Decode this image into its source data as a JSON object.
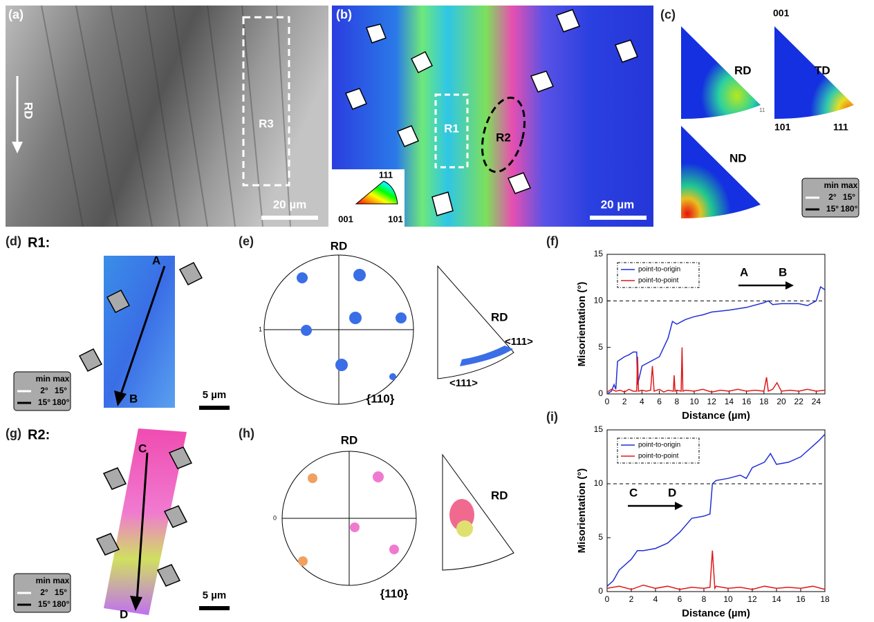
{
  "figure": {
    "a": {
      "label": "(a)",
      "direction": "RD",
      "region": "R3",
      "scale_bar": "20 µm"
    },
    "b": {
      "label": "(b)",
      "regions": [
        "R1",
        "R2"
      ],
      "scale_bar": "20 µm",
      "key": {
        "top": "111",
        "left": "001",
        "right": "101"
      }
    },
    "c": {
      "label": "(c)",
      "maps": [
        "RD",
        "TD",
        "ND"
      ],
      "corners": {
        "top": "001",
        "left": "101",
        "right": "111"
      },
      "mark": "11",
      "legend": {
        "header": "min max",
        "rows": [
          [
            "2°",
            "15°"
          ],
          [
            "15°",
            "180°"
          ]
        ]
      }
    },
    "d": {
      "label": "(d)",
      "title": "R1:",
      "start": "A",
      "end": "B",
      "scale_bar": "5 µm",
      "legend": {
        "header": "min max",
        "rows": [
          [
            "2°",
            "15°"
          ],
          [
            "15°",
            "180°"
          ]
        ]
      }
    },
    "e": {
      "label": "(e)",
      "pole_figure": "{110}",
      "axis": "RD",
      "ipf_axis": "RD",
      "directions": [
        "<111>",
        "<111>"
      ],
      "tick": "1"
    },
    "g": {
      "label": "(g)",
      "title": "R2:",
      "start": "C",
      "end": "D",
      "scale_bar": "5 µm",
      "legend": {
        "header": "min max",
        "rows": [
          [
            "2°",
            "15°"
          ],
          [
            "15°",
            "180°"
          ]
        ]
      }
    },
    "h": {
      "label": "(h)",
      "pole_figure": "{110}",
      "axis": "RD",
      "ipf_axis": "RD",
      "tick": "0"
    }
  },
  "chart_data": [
    {
      "type": "line",
      "panel_label": "(f)",
      "xlabel": "Distance (µm)",
      "ylabel": "Misorientation (°)",
      "xlim": [
        0,
        25
      ],
      "xticks": [
        0,
        2,
        4,
        6,
        8,
        10,
        12,
        14,
        16,
        18,
        20,
        22,
        24
      ],
      "ylim": [
        0,
        15
      ],
      "yticks": [
        0,
        5,
        10,
        15
      ],
      "hline": 10,
      "annotations": [
        "A",
        "B"
      ],
      "legend": "upper left",
      "series": [
        {
          "name": "point-to-origin",
          "color": "#1f2fd6",
          "x": [
            0,
            0.5,
            0.8,
            1,
            1.2,
            2,
            2.5,
            3,
            3.4,
            3.5,
            4,
            5,
            6,
            6.5,
            7,
            7.5,
            8,
            9,
            10,
            11,
            12,
            14,
            16,
            18,
            18.5,
            19,
            20,
            22,
            23,
            24,
            24.5,
            25
          ],
          "values": [
            0,
            0.3,
            1,
            0.5,
            3.5,
            4,
            4.2,
            4.5,
            4.5,
            1,
            3,
            3.5,
            4,
            5,
            6,
            7.8,
            7.5,
            8,
            8.3,
            8.5,
            8.8,
            9,
            9.3,
            9.8,
            10,
            9.6,
            9.7,
            9.7,
            9.5,
            10,
            11.5,
            11.2
          ]
        },
        {
          "name": "point-to-point",
          "color": "#e01818",
          "x": [
            0,
            0.5,
            1,
            1.5,
            2,
            2.5,
            3,
            3.4,
            3.5,
            3.6,
            4,
            4.5,
            5,
            5.2,
            5.4,
            6,
            6.5,
            7,
            7.6,
            7.7,
            7.8,
            8,
            8.5,
            8.6,
            8.7,
            9,
            10,
            11,
            12,
            13,
            14,
            15,
            16,
            17,
            18,
            18.3,
            18.5,
            19,
            19.5,
            20,
            21,
            22,
            23,
            24,
            25
          ],
          "values": [
            0.2,
            0.5,
            0.3,
            0.4,
            0.2,
            0.5,
            0.3,
            0.3,
            4,
            0.3,
            0.4,
            0.3,
            0.4,
            3,
            0.3,
            0.5,
            0.2,
            0.4,
            0.3,
            2,
            0.3,
            0.4,
            0.3,
            5,
            0.3,
            0.4,
            0.3,
            0.5,
            0.2,
            0.4,
            0.3,
            0.5,
            0.3,
            0.4,
            0.3,
            1.8,
            0.3,
            0.5,
            1.2,
            0.3,
            0.4,
            0.3,
            0.5,
            0.3,
            0.4
          ]
        }
      ]
    },
    {
      "type": "line",
      "panel_label": "(i)",
      "xlabel": "Distance (µm)",
      "ylabel": "Misorientation (°)",
      "xlim": [
        0,
        18
      ],
      "xticks": [
        0,
        2,
        4,
        6,
        8,
        10,
        12,
        14,
        16,
        18
      ],
      "ylim": [
        0,
        15
      ],
      "yticks": [
        0,
        5,
        10,
        15
      ],
      "hline": 10,
      "annotations": [
        "C",
        "D"
      ],
      "legend": "upper left",
      "series": [
        {
          "name": "point-to-origin",
          "color": "#1f2fd6",
          "x": [
            0,
            0.5,
            1,
            2,
            2.5,
            3,
            4,
            5,
            6,
            7,
            8,
            8.5,
            8.7,
            9,
            10,
            11,
            11.5,
            12,
            13,
            13.5,
            14,
            15,
            16,
            17,
            17.5,
            18
          ],
          "values": [
            0.5,
            1,
            2,
            3,
            3.8,
            3.8,
            4,
            4.5,
            5.5,
            6.8,
            7,
            7.2,
            10,
            10.3,
            10.5,
            10.8,
            10.5,
            11.5,
            12,
            12.8,
            11.8,
            12,
            12.5,
            13.5,
            14,
            14.6
          ]
        },
        {
          "name": "point-to-point",
          "color": "#e01818",
          "x": [
            0,
            1,
            2,
            3,
            4,
            5,
            6,
            7,
            8,
            8.5,
            8.7,
            8.9,
            9,
            10,
            11,
            12,
            13,
            14,
            15,
            16,
            17,
            18
          ],
          "values": [
            0.3,
            0.5,
            0.2,
            0.6,
            0.3,
            0.5,
            0.2,
            0.4,
            0.3,
            0.4,
            3.8,
            0.3,
            0.5,
            0.3,
            0.4,
            0.2,
            0.5,
            0.3,
            0.4,
            0.3,
            0.5,
            0.2
          ]
        }
      ]
    }
  ]
}
